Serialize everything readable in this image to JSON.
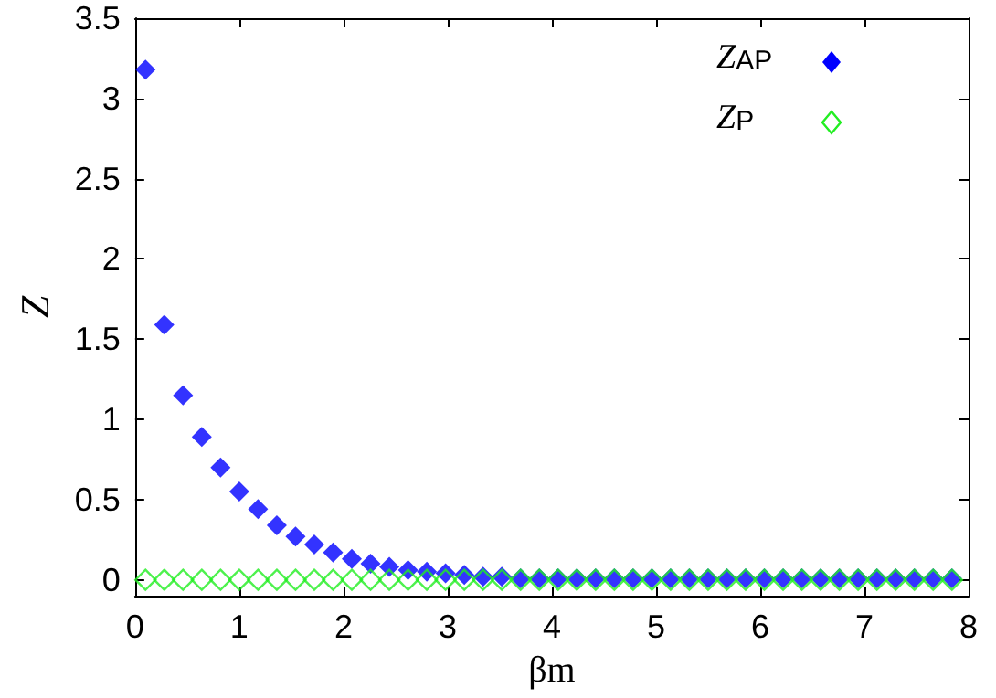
{
  "chart_data": {
    "type": "scatter",
    "xlabel": "βm",
    "ylabel": "Z",
    "xlim": [
      0,
      8
    ],
    "xticks": [
      0,
      1,
      2,
      3,
      4,
      5,
      6,
      7,
      8
    ],
    "ylim": [
      -0.1,
      3.5
    ],
    "yticks": [
      0,
      0.5,
      1,
      1.5,
      2,
      2.5,
      3,
      3.5
    ],
    "grid": false,
    "legend": "top right",
    "marker": "diamond",
    "x": [
      0.1,
      0.28,
      0.46,
      0.64,
      0.82,
      1.0,
      1.18,
      1.36,
      1.54,
      1.72,
      1.9,
      2.08,
      2.26,
      2.44,
      2.62,
      2.8,
      2.98,
      3.16,
      3.34,
      3.52,
      3.7,
      3.88,
      4.06,
      4.24,
      4.42,
      4.6,
      4.78,
      4.96,
      5.14,
      5.32,
      5.5,
      5.68,
      5.86,
      6.04,
      6.22,
      6.4,
      6.58,
      6.76,
      6.94,
      7.12,
      7.3,
      7.48,
      7.66,
      7.84
    ],
    "series": [
      {
        "name": "Z$_{AP}$",
        "color": "#0000ff",
        "values": [
          3.18,
          1.59,
          1.15,
          0.89,
          0.7,
          0.55,
          0.44,
          0.34,
          0.27,
          0.22,
          0.17,
          0.13,
          0.1,
          0.08,
          0.06,
          0.05,
          0.04,
          0.03,
          0.02,
          0.02,
          0.01,
          0.01,
          0.01,
          0.01,
          0.01,
          0.01,
          0.01,
          0.01,
          0.01,
          0.01,
          0.01,
          0.01,
          0.01,
          0.01,
          0.01,
          0.01,
          0.01,
          0.01,
          0.01,
          0.01,
          0.01,
          0.01,
          0.01,
          0.01
        ]
      },
      {
        "name": "Z$_{P}$",
        "color": "#22ee22",
        "values": [
          0,
          0,
          0,
          0,
          0,
          0,
          0,
          0,
          0,
          0,
          0,
          0,
          0,
          0,
          0,
          0,
          0,
          0,
          0,
          0,
          0,
          0,
          0,
          0,
          0,
          0,
          0,
          0,
          0,
          0,
          0,
          0,
          0,
          0,
          0,
          0,
          0,
          0,
          0,
          0,
          0,
          0,
          0,
          0
        ]
      }
    ]
  }
}
